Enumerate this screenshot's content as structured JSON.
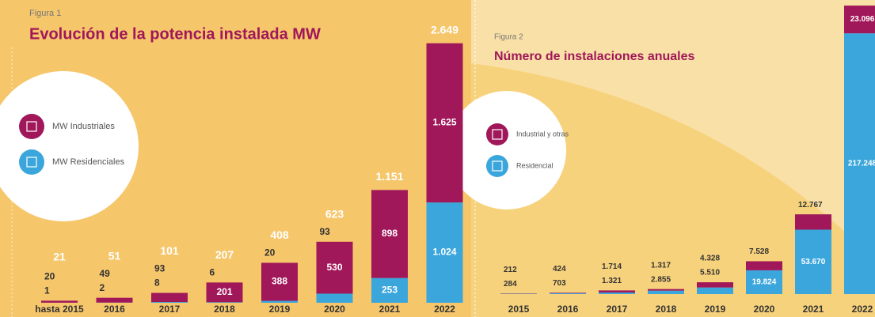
{
  "chart_data": [
    {
      "type": "stacked-bar",
      "figure": "Figura 1",
      "title": "Evolución de la potencia instalada MW",
      "categories": [
        "hasta 2015",
        "2016",
        "2017",
        "2018",
        "2019",
        "2020",
        "2021",
        "2022"
      ],
      "series": [
        {
          "name": "MW Industriales",
          "color": "#a0175a",
          "values": [
            20,
            49,
            93,
            201,
            388,
            530,
            898,
            1625
          ],
          "value_labels": [
            "20",
            "49",
            "93",
            "201",
            "388",
            "530",
            "898",
            "1.625"
          ]
        },
        {
          "name": "MW Residenciales",
          "color": "#3aa6dc",
          "values": [
            1,
            2,
            8,
            6,
            20,
            93,
            253,
            1024
          ],
          "value_labels": [
            "1",
            "2",
            "8",
            "6",
            "20",
            "93",
            "253",
            "1.024"
          ]
        }
      ],
      "totals": {
        "values": [
          21,
          51,
          101,
          207,
          408,
          623,
          1151,
          2649
        ],
        "value_labels": [
          "21",
          "51",
          "101",
          "207",
          "408",
          "623",
          "1.151",
          "2.649"
        ]
      },
      "ylim": [
        0,
        2800
      ]
    },
    {
      "type": "stacked-bar",
      "figure": "Figura 2",
      "title": "Número de instalaciones anuales",
      "categories": [
        "2015",
        "2016",
        "2017",
        "2018",
        "2019",
        "2020",
        "2021",
        "2022"
      ],
      "series": [
        {
          "name": "Industrial y otras",
          "color": "#a0175a",
          "values": [
            212,
            424,
            1714,
            1317,
            4328,
            7528,
            12767,
            23096
          ],
          "value_labels": [
            "212",
            "424",
            "1.714",
            "1.317",
            "4.328",
            "7.528",
            "12.767",
            "23.096"
          ]
        },
        {
          "name": "Residencial",
          "color": "#3aa6dc",
          "values": [
            284,
            703,
            1321,
            2855,
            5510,
            19824,
            53670,
            217248
          ],
          "value_labels": [
            "284",
            "703",
            "1.321",
            "2.855",
            "5.510",
            "19.824",
            "53.670",
            "217.248"
          ]
        }
      ],
      "ylim": [
        0,
        245000
      ]
    }
  ]
}
